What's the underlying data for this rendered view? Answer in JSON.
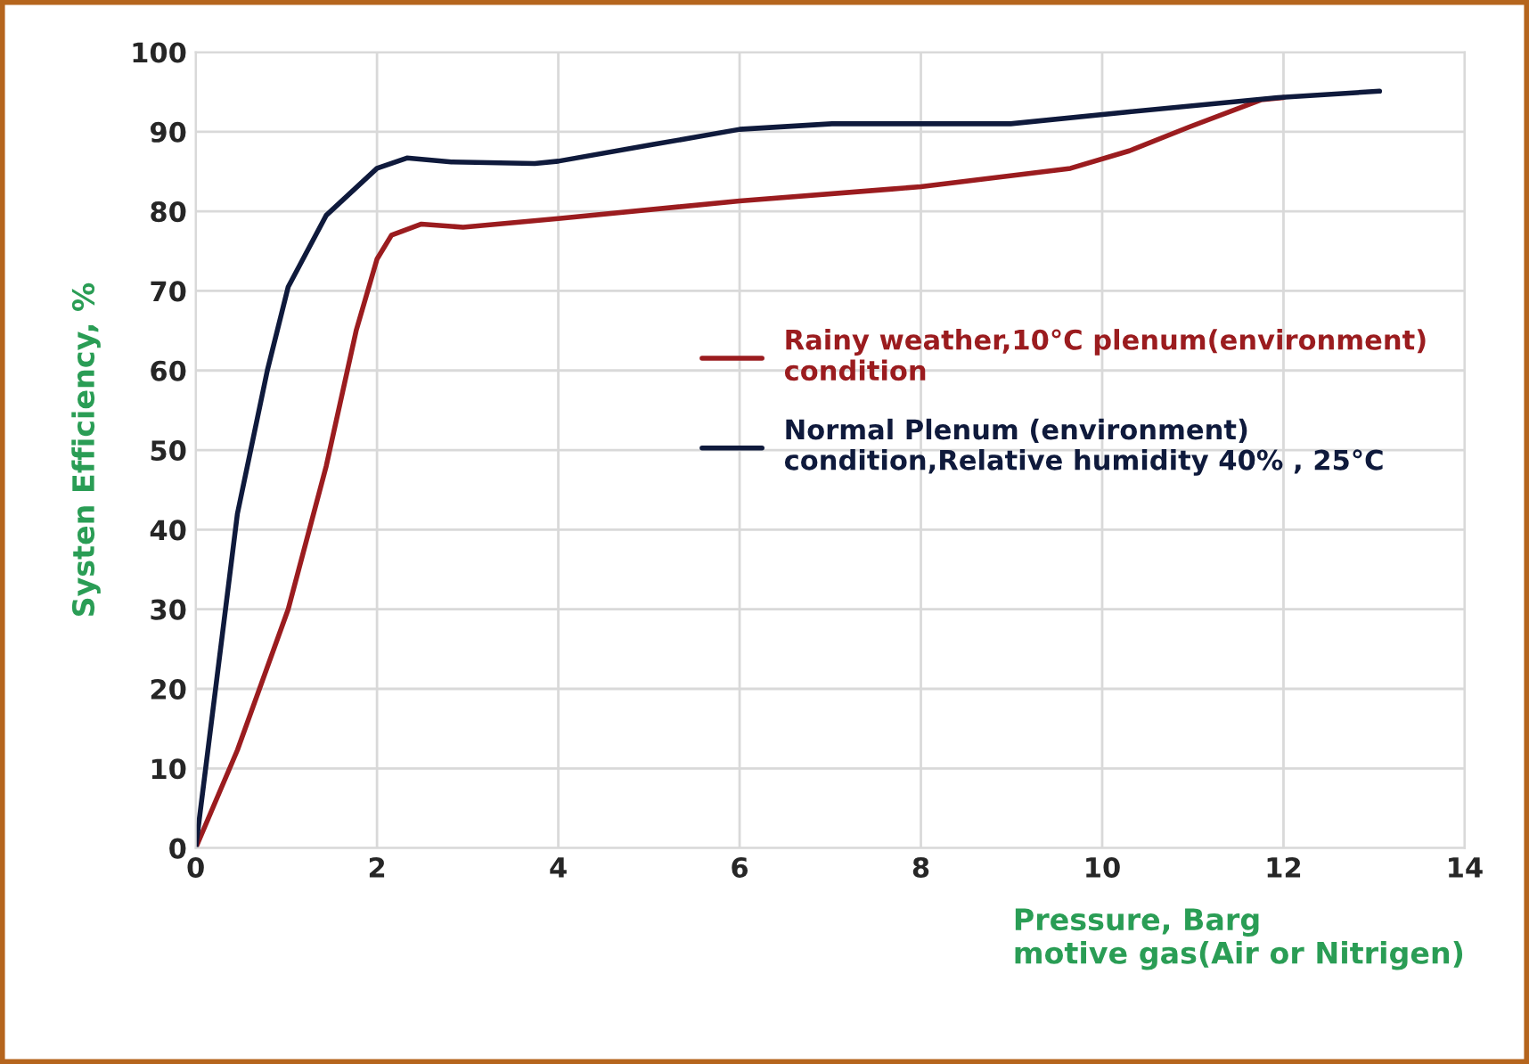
{
  "chart_data": {
    "type": "line",
    "xlabel": "Pressure, Barg\nmotive gas(Air or Nitrigen)",
    "ylabel": "Systen Efficiency, %",
    "xlim": [
      0,
      14
    ],
    "xticks": [
      0,
      2,
      4,
      6,
      8,
      10,
      12,
      14
    ],
    "ylim": [
      0,
      100
    ],
    "yticks": [
      0,
      10,
      20,
      30,
      40,
      50,
      60,
      70,
      80,
      90,
      100
    ],
    "grid": true,
    "legend": "right",
    "marker": "none",
    "line_style": "solid",
    "series": [
      {
        "name": "Rainy weather,10°C plenum(environment)\ncondition",
        "color": "#9b1c1f",
        "x": [
          0,
          0.46,
          1.02,
          1.44,
          1.77,
          2.0,
          2.16,
          2.49,
          2.95,
          4.0,
          6.0,
          7.68,
          8.0,
          9.65,
          10.3,
          10.96,
          11.75,
          12.0
        ],
        "values": [
          0,
          12.3,
          30,
          48,
          65,
          74,
          77,
          78.4,
          78,
          79.1,
          81.3,
          82.8,
          83.1,
          85.4,
          87.6,
          90.6,
          94,
          94.3
        ]
      },
      {
        "name": "Normal Plenum (environment)\ncondition,Relative humidity 40% , 25°C",
        "color": "#0f1a3c",
        "x": [
          0,
          0.46,
          0.79,
          1.02,
          1.44,
          2.0,
          2.33,
          2.82,
          3.74,
          4.0,
          5.05,
          6.0,
          7.02,
          8.99,
          10.3,
          11.94,
          13.06
        ],
        "values": [
          0,
          42,
          60,
          70.5,
          79.5,
          85.4,
          86.7,
          86.2,
          86,
          86.3,
          88.4,
          90.3,
          91.0,
          91.0,
          92.5,
          94.3,
          95.1
        ]
      }
    ]
  }
}
